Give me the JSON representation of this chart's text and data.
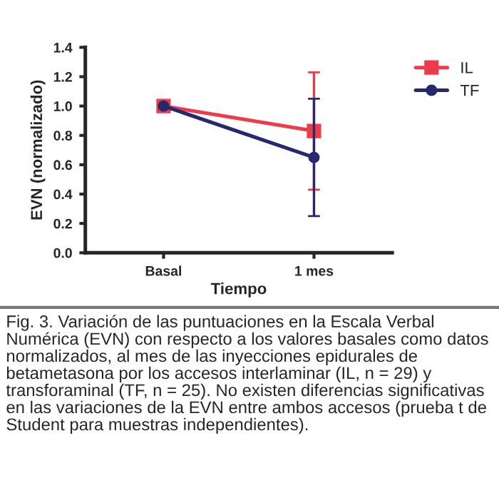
{
  "chart_data": {
    "type": "line",
    "xlabel": "Tiempo",
    "ylabel": "EVN (normalizado)",
    "categories": [
      "Basal",
      "1 mes"
    ],
    "series": [
      {
        "name": "IL",
        "color": "#ee3b4a",
        "values": [
          1.0,
          0.83
        ],
        "errors": [
          null,
          0.4
        ],
        "marker": "square"
      },
      {
        "name": "TF",
        "color": "#27286e",
        "values": [
          1.0,
          0.65
        ],
        "errors": [
          null,
          0.4
        ],
        "marker": "circle"
      }
    ],
    "ylim": [
      0,
      1.4
    ],
    "yticks": [
      {
        "value": 0,
        "label": "0.0"
      },
      {
        "value": 0.2,
        "label": "0.2"
      },
      {
        "value": 0.4,
        "label": "0.4"
      },
      {
        "value": 0.6,
        "label": "0.6"
      },
      {
        "value": 0.8,
        "label": "0.8"
      },
      {
        "value": 1,
        "label": "1.0"
      },
      {
        "value": 1.2,
        "label": "1.2"
      },
      {
        "value": 1.4,
        "label": "1.4"
      }
    ],
    "legend": "top right",
    "grid": false,
    "line_style": "solid",
    "annotations": [
      "Fig. 3. Variación de las puntuaciones en la Escala Verbal Numérica (EVN) con respecto a los valores basales como datos normalizados, al mes de las inyecciones epidurales de betametasona por los accesos interlaminar (IL, n = 29) y transforaminal (TF, n = 25). No existen diferencias significativas en las variaciones de la EVN entre ambos accesos (prueba t de Student para muestras independientes)."
    ]
  }
}
